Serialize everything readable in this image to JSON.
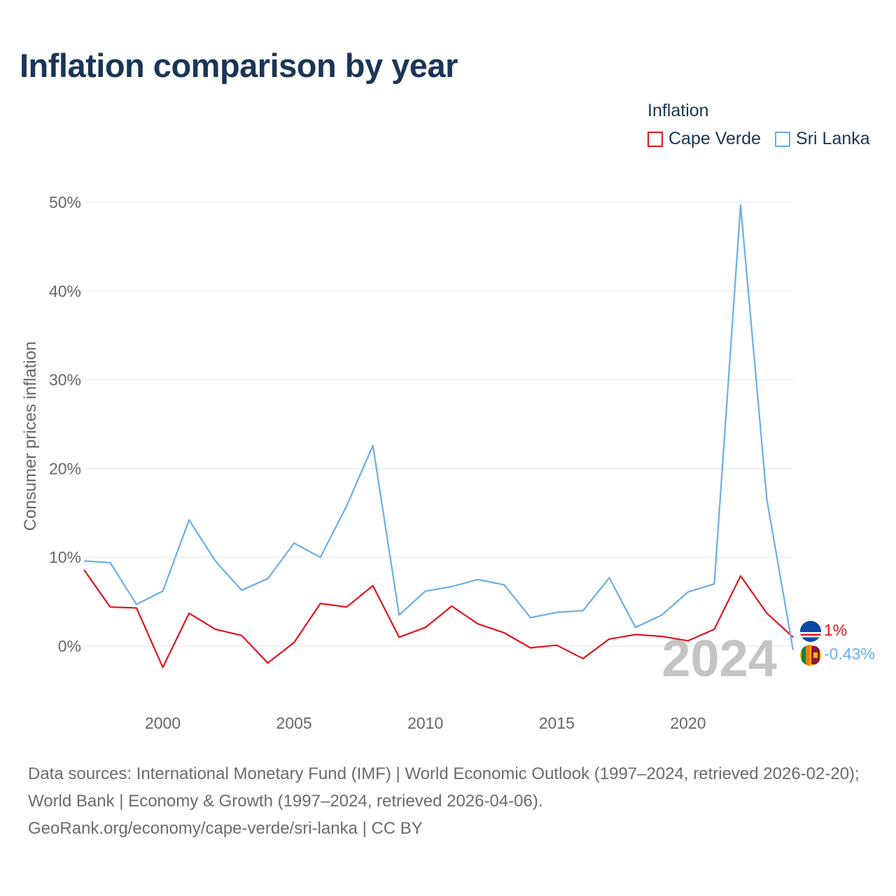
{
  "title": "Inflation comparison by year",
  "legend": {
    "title": "Inflation",
    "items": [
      {
        "label": "Cape Verde",
        "color": "#e3141c"
      },
      {
        "label": "Sri Lanka",
        "color": "#6aaee6"
      }
    ]
  },
  "year_marker": "2024",
  "end_labels": {
    "cape_verde": "1%",
    "sri_lanka": "-0.43%"
  },
  "sources": {
    "line1": "Data sources: International Monetary Fund (IMF) | World Economic Outlook (1997–2024, retrieved 2026-02-20); World Bank | Economy & Growth (1997–2024, retrieved 2026-04-06).",
    "line2": "GeoRank.org/economy/cape-verde/sri-lanka | CC BY"
  },
  "chart_data": {
    "type": "line",
    "title": "Inflation comparison by year",
    "xlabel": "",
    "ylabel": "Consumer prices inflation",
    "x": [
      1997,
      1998,
      1999,
      2000,
      2001,
      2002,
      2003,
      2004,
      2005,
      2006,
      2007,
      2008,
      2009,
      2010,
      2011,
      2012,
      2013,
      2014,
      2015,
      2016,
      2017,
      2018,
      2019,
      2020,
      2021,
      2022,
      2023,
      2024
    ],
    "xticks": [
      2000,
      2005,
      2010,
      2015,
      2020
    ],
    "xtick_labels": [
      "2000",
      "2005",
      "2010",
      "2015",
      "2020"
    ],
    "yticks": [
      0,
      10,
      20,
      30,
      40,
      50
    ],
    "ytick_labels": [
      "0%",
      "10%",
      "20%",
      "30%",
      "40%",
      "50%"
    ],
    "xlim": [
      1997,
      2024
    ],
    "ylim": [
      -6.5,
      52
    ],
    "grid": true,
    "legend_position": "top-right",
    "series": [
      {
        "name": "Cape Verde",
        "color": "#e3141c",
        "values": [
          8.6,
          4.4,
          4.3,
          -2.4,
          3.7,
          1.9,
          1.2,
          -1.9,
          0.4,
          4.8,
          4.4,
          6.8,
          1.0,
          2.1,
          4.5,
          2.5,
          1.5,
          -0.2,
          0.1,
          -1.4,
          0.8,
          1.3,
          1.1,
          0.6,
          1.9,
          7.9,
          3.7,
          1.0
        ]
      },
      {
        "name": "Sri Lanka",
        "color": "#6aaee6",
        "values": [
          9.6,
          9.4,
          4.7,
          6.2,
          14.2,
          9.6,
          6.3,
          7.6,
          11.6,
          10.0,
          15.8,
          22.6,
          3.5,
          6.2,
          6.7,
          7.5,
          6.9,
          3.2,
          3.8,
          4.0,
          7.7,
          2.1,
          3.5,
          6.1,
          7.0,
          49.7,
          16.5,
          -0.43
        ]
      }
    ]
  }
}
